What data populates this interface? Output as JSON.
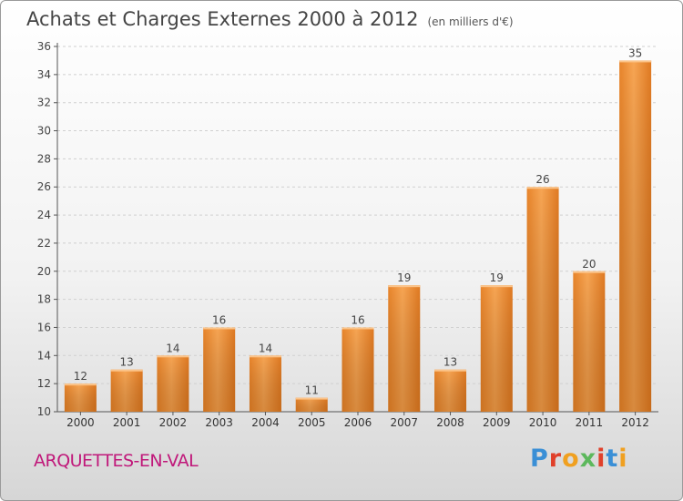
{
  "header": {
    "title": "Achats et Charges Externes 2000 à 2012",
    "unit": "(en milliers d'€)"
  },
  "footer": {
    "location": "ARQUETTES-EN-VAL",
    "brand": "Proxiti",
    "brand_colors": [
      "#3a8fd6",
      "#e0402a",
      "#f0a020",
      "#5cb85c",
      "#e0402a",
      "#3a8fd6",
      "#f0a020"
    ]
  },
  "chart_data": {
    "type": "bar",
    "categories": [
      "2000",
      "2001",
      "2002",
      "2003",
      "2004",
      "2005",
      "2006",
      "2007",
      "2008",
      "2009",
      "2010",
      "2011",
      "2012"
    ],
    "values": [
      12,
      13,
      14,
      16,
      14,
      11,
      16,
      19,
      13,
      19,
      26,
      20,
      35
    ],
    "ylim": [
      10,
      36
    ],
    "yticks": [
      10,
      12,
      14,
      16,
      18,
      20,
      22,
      24,
      26,
      28,
      30,
      32,
      34,
      36
    ],
    "grid": true,
    "bar_color": "#f0953a"
  }
}
